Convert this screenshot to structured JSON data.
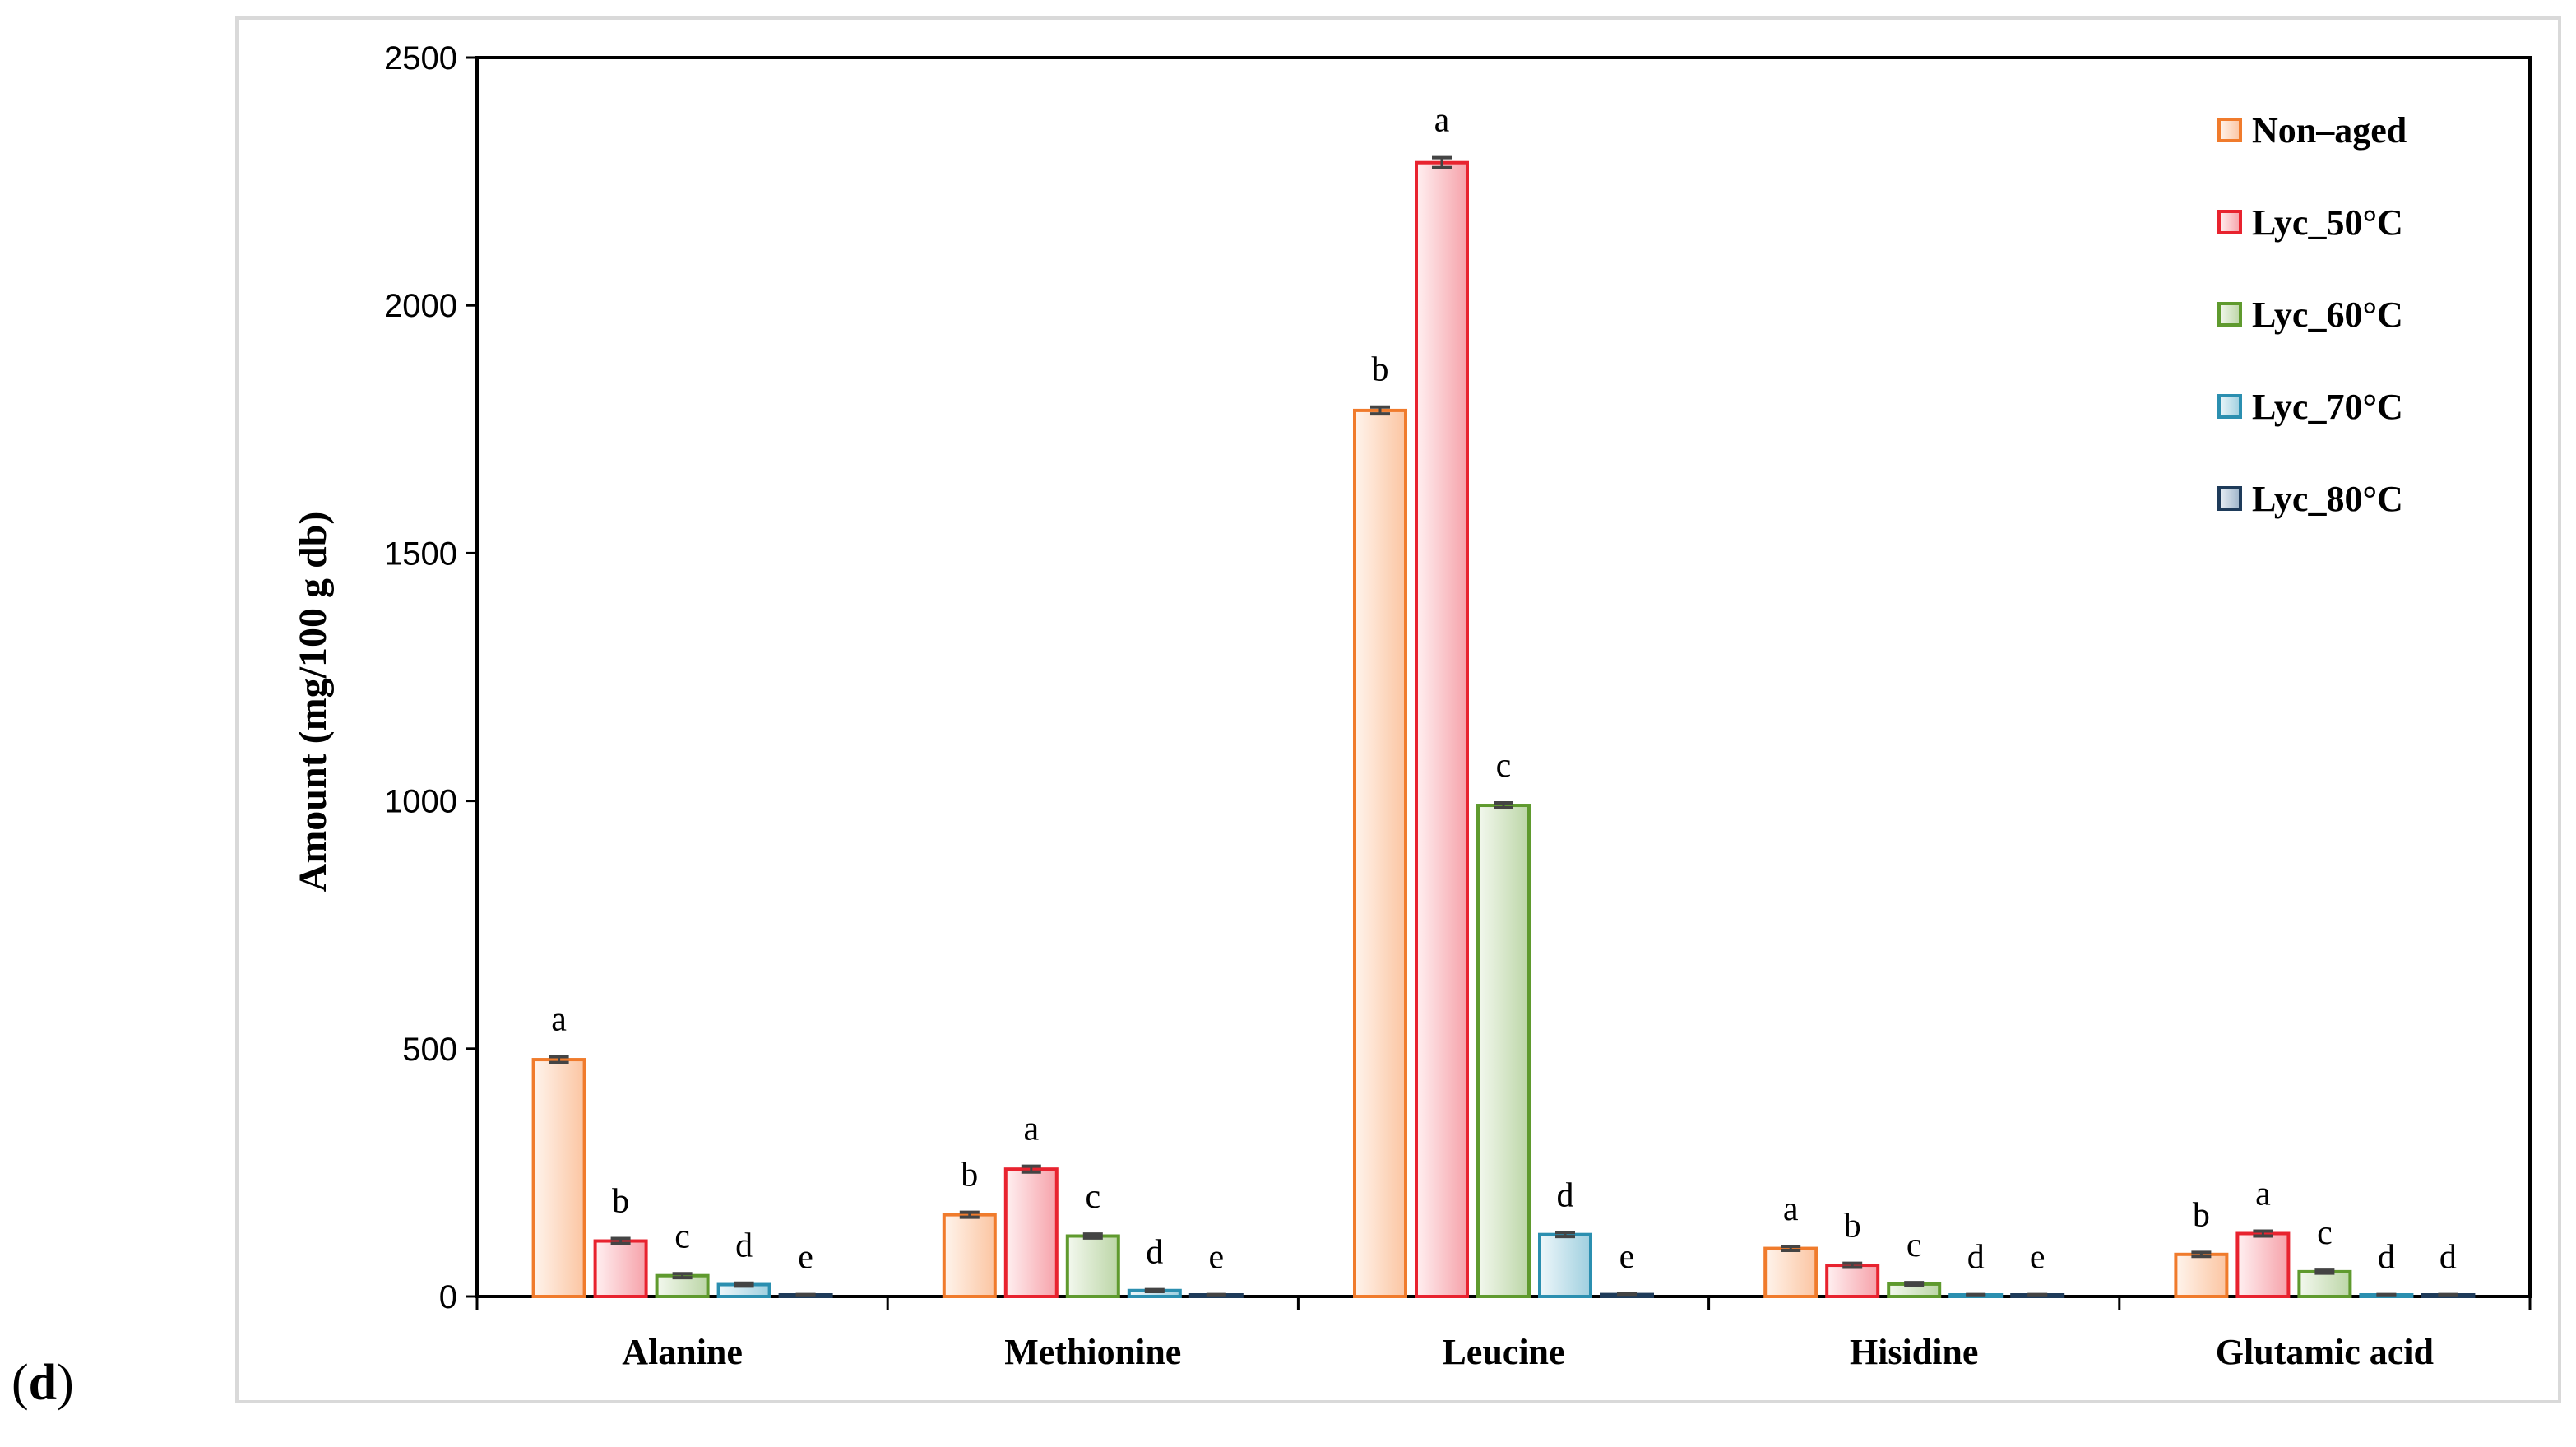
{
  "panel_label": {
    "open": "(",
    "letter": "d",
    "close": ")"
  },
  "chart_data": {
    "type": "bar",
    "ylabel": "Amount (mg/100 g db)",
    "xlabel": "",
    "ylim": [
      0,
      2500
    ],
    "yticks": [
      0,
      500,
      1000,
      1500,
      2000,
      2500
    ],
    "categories": [
      "Alanine",
      "Methionine",
      "Leucine",
      "Hisidine",
      "Glutamic acid"
    ],
    "legend_position": "top-right",
    "series": [
      {
        "name": "Non–aged",
        "stroke": "#f07b2c",
        "fill_light": "#fff4ec",
        "fill_dark": "#fbc5a2",
        "values": [
          478,
          165,
          1788,
          97,
          85
        ],
        "errors": [
          6,
          5,
          7,
          4,
          4
        ],
        "labels": [
          "a",
          "b",
          "b",
          "a",
          "b"
        ]
      },
      {
        "name": "Lyc_50°C",
        "stroke": "#e8232f",
        "fill_light": "#fff0f1",
        "fill_dark": "#f6a2aa",
        "values": [
          112,
          257,
          2288,
          63,
          127
        ],
        "errors": [
          5,
          6,
          10,
          4,
          5
        ],
        "labels": [
          "b",
          "a",
          "a",
          "b",
          "a"
        ]
      },
      {
        "name": "Lyc_60°C",
        "stroke": "#5f9a2e",
        "fill_light": "#f3f8ee",
        "fill_dark": "#bcd6a7",
        "values": [
          42,
          122,
          991,
          25,
          50
        ],
        "errors": [
          4,
          4,
          5,
          3,
          3
        ],
        "labels": [
          "c",
          "c",
          "c",
          "c",
          "c"
        ]
      },
      {
        "name": "Lyc_70°C",
        "stroke": "#2b8fb0",
        "fill_light": "#eef7fa",
        "fill_dark": "#9fcfdf",
        "values": [
          24,
          12,
          125,
          3,
          3
        ],
        "errors": [
          3,
          2,
          4,
          1,
          1
        ],
        "labels": [
          "d",
          "d",
          "d",
          "d",
          "d"
        ]
      },
      {
        "name": "Lyc_80°C",
        "stroke": "#1e3b5a",
        "fill_light": "#eaf0f6",
        "fill_dark": "#9db4c9",
        "values": [
          3,
          3,
          4,
          3,
          3
        ],
        "errors": [
          1,
          1,
          1,
          1,
          1
        ],
        "labels": [
          "e",
          "e",
          "e",
          "e",
          "d"
        ]
      }
    ]
  }
}
